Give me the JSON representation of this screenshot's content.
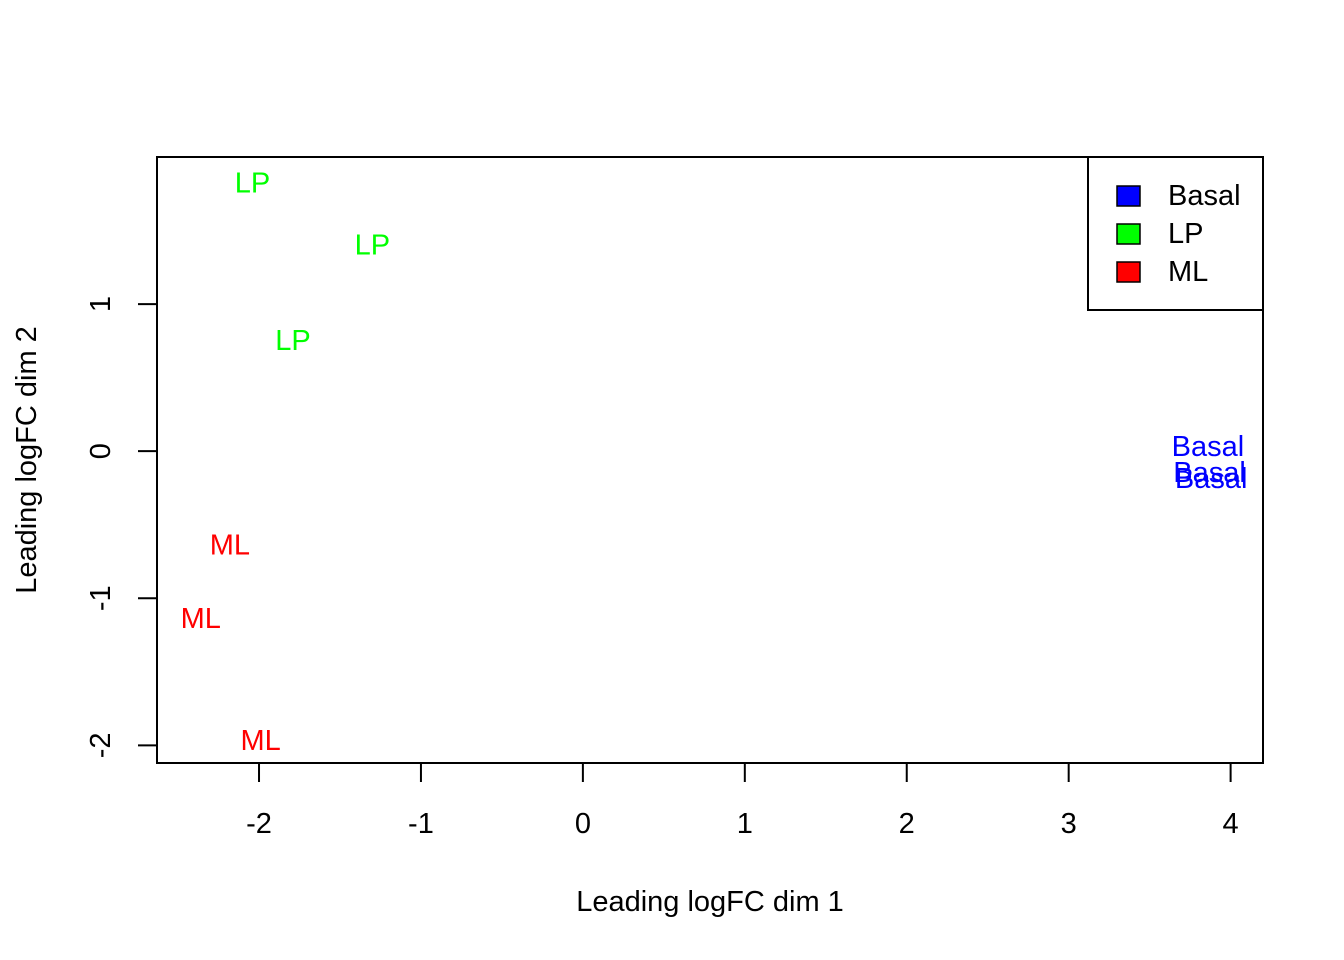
{
  "chart_data": {
    "type": "scatter",
    "title": "",
    "xlabel": "Leading logFC dim 1",
    "ylabel": "Leading logFC dim 2",
    "xlim": [
      -2.63,
      4.2
    ],
    "ylim": [
      -2.12,
      2.0
    ],
    "x_ticks": [
      -2,
      -1,
      0,
      1,
      2,
      3,
      4
    ],
    "x_tick_labels": [
      "-2",
      "-1",
      "0",
      "1",
      "2",
      "3",
      "4"
    ],
    "y_ticks": [
      -2,
      -1,
      0,
      1
    ],
    "y_tick_labels": [
      "-2",
      "-1",
      "0",
      "1"
    ],
    "grid": false,
    "legend_position": "top-right",
    "legend": [
      {
        "label": "Basal",
        "color": "#0000FF"
      },
      {
        "label": "LP",
        "color": "#00FF00"
      },
      {
        "label": "ML",
        "color": "#FF0000"
      }
    ],
    "points": [
      {
        "label": "LP",
        "group": "LP",
        "x": -2.04,
        "y": 1.82
      },
      {
        "label": "LP",
        "group": "LP",
        "x": -1.3,
        "y": 1.4
      },
      {
        "label": "LP",
        "group": "LP",
        "x": -1.79,
        "y": 0.75
      },
      {
        "label": "Basal",
        "group": "Basal",
        "x": 3.86,
        "y": 0.03
      },
      {
        "label": "Basal",
        "group": "Basal",
        "x": 3.87,
        "y": -0.15
      },
      {
        "label": "Basal",
        "group": "Basal",
        "x": 3.88,
        "y": -0.19
      },
      {
        "label": "ML",
        "group": "ML",
        "x": -2.18,
        "y": -0.64
      },
      {
        "label": "ML",
        "group": "ML",
        "x": -2.36,
        "y": -1.14
      },
      {
        "label": "ML",
        "group": "ML",
        "x": -1.99,
        "y": -1.97
      }
    ]
  }
}
